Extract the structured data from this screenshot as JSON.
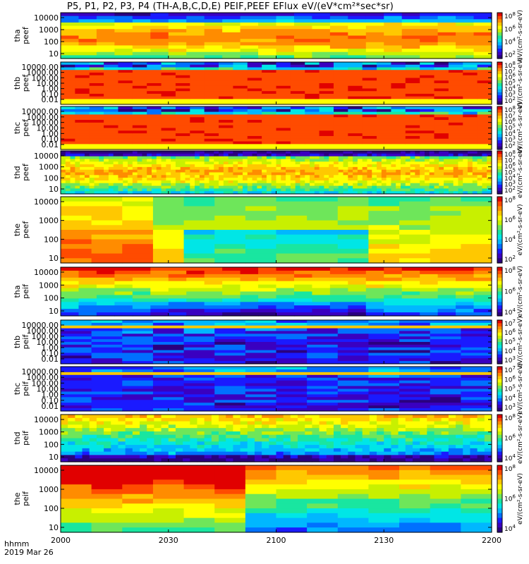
{
  "title": "P5, P1, P2, P3, P4 (TH-A,B,C,D,E) PEIF,PEEF EFlux eV/(eV*cm²*sec*sr)",
  "footer": {
    "line1": "hhmm",
    "line2": "2019 Mar 26"
  },
  "colorbar_label": "eV/(cm²-s-sr-eV)",
  "palette": [
    "#2a007f",
    "#3a00c0",
    "#1a1aff",
    "#0070ff",
    "#00b7ff",
    "#00e6e6",
    "#19e6a0",
    "#6ee65a",
    "#c8f000",
    "#ffff00",
    "#ffc800",
    "#ff8c00",
    "#ff4b00",
    "#e10000"
  ],
  "chart_data": [
    {
      "type": "heatmap",
      "name": "tha_peef",
      "ylabel_line1": "tha",
      "ylabel_line2": "peef",
      "yticks": [
        "10000",
        "1000",
        "100",
        "10"
      ],
      "xticks": [
        "2000",
        "2030",
        "2100",
        "2130",
        "2200"
      ],
      "cbar_ticks": [
        "10^8",
        "10^6",
        "10^4",
        "10^2"
      ],
      "time_bins": 24,
      "energy_bins": 14,
      "log_energy_range": [
        0.7,
        4.4
      ],
      "nan_low": [],
      "pattern": "peef_a"
    },
    {
      "type": "heatmap",
      "name": "thb_peef",
      "ylabel_line1": "thb",
      "ylabel_line2": "peef",
      "yticks": [
        "10000.00",
        "1000.00",
        "100.00",
        "10.00",
        "1.00",
        "0.10",
        "0.01"
      ],
      "xticks": [
        "2000",
        "2030",
        "2100",
        "2130",
        "2200"
      ],
      "cbar_ticks": [
        "10^8",
        "10^7",
        "10^6",
        "10^5",
        "10^4",
        "10^3",
        "10^2"
      ],
      "time_bins": 30,
      "energy_bins": 16,
      "log_energy_range": [
        -2.0,
        4.1
      ],
      "pattern": "peef_b"
    },
    {
      "type": "heatmap",
      "name": "thc_peef",
      "ylabel_line1": "thc",
      "ylabel_line2": "peef",
      "yticks": [
        "10000.00",
        "1000.00",
        "100.00",
        "10.00",
        "1.00",
        "0.10",
        "0.01"
      ],
      "xticks": [
        "2000",
        "2030",
        "2100",
        "2130",
        "2200"
      ],
      "cbar_ticks": [
        "10^8",
        "10^7",
        "10^6",
        "10^5",
        "10^4",
        "10^3",
        "10^2"
      ],
      "time_bins": 30,
      "energy_bins": 16,
      "log_energy_range": [
        -2.0,
        4.1
      ],
      "pattern": "peef_c"
    },
    {
      "type": "heatmap",
      "name": "thd_peef",
      "ylabel_line1": "thd",
      "ylabel_line2": "peef",
      "yticks": [
        "10000",
        "1000",
        "100",
        "10"
      ],
      "xticks": [
        "2000",
        "2030",
        "2100",
        "2130",
        "2200"
      ],
      "cbar_ticks": [
        "10^8",
        "10^7",
        "10^6",
        "10^5",
        "10^4",
        "10^3",
        "10^2"
      ],
      "time_bins": 90,
      "energy_bins": 16,
      "log_energy_range": [
        0.7,
        4.4
      ],
      "pattern": "peef_d"
    },
    {
      "type": "heatmap",
      "name": "the_peef",
      "ylabel_line1": "the",
      "ylabel_line2": "peef",
      "yticks": [
        "10000",
        "1000",
        "100",
        "10"
      ],
      "xticks": [
        "2000",
        "2030",
        "2100",
        "2130",
        "2200"
      ],
      "cbar_ticks": [
        "10^8",
        "10^6",
        "10^4",
        "10^2"
      ],
      "time_bins": 14,
      "energy_bins": 14,
      "log_energy_range": [
        0.7,
        4.4
      ],
      "pattern": "peef_e"
    },
    {
      "type": "heatmap",
      "name": "tha_peif",
      "ylabel_line1": "tha",
      "ylabel_line2": "peif",
      "yticks": [
        "10000",
        "1000",
        "100",
        "10"
      ],
      "xticks": [
        "2000",
        "2030",
        "2100",
        "2130",
        "2200"
      ],
      "cbar_ticks": [
        "10^8",
        "10^6",
        "10^4"
      ],
      "time_bins": 24,
      "energy_bins": 14,
      "log_energy_range": [
        0.7,
        4.4
      ],
      "pattern": "peif_a"
    },
    {
      "type": "heatmap",
      "name": "thb_peif",
      "ylabel_line1": "thb",
      "ylabel_line2": "peif",
      "yticks": [
        "10000.00",
        "1000.00",
        "100.00",
        "10.00",
        "1.00",
        "0.10",
        "0.01"
      ],
      "xticks": [
        "2000",
        "2030",
        "2100",
        "2130",
        "2200"
      ],
      "cbar_ticks": [
        "10^7",
        "10^6",
        "10^5",
        "10^4",
        "10^3"
      ],
      "time_bins": 14,
      "energy_bins": 16,
      "log_energy_range": [
        -2.0,
        4.1
      ],
      "pattern": "peif_b"
    },
    {
      "type": "heatmap",
      "name": "thc_peif",
      "ylabel_line1": "thc",
      "ylabel_line2": "peif",
      "yticks": [
        "10000.00",
        "1000.00",
        "100.00",
        "10.00",
        "1.00",
        "0.10",
        "0.01"
      ],
      "xticks": [
        "2000",
        "2030",
        "2100",
        "2130",
        "2200"
      ],
      "cbar_ticks": [
        "10^7",
        "10^6",
        "10^5",
        "10^4",
        "10^3"
      ],
      "time_bins": 14,
      "energy_bins": 16,
      "log_energy_range": [
        -2.0,
        4.1
      ],
      "pattern": "peif_c"
    },
    {
      "type": "heatmap",
      "name": "thd_peif",
      "ylabel_line1": "thd",
      "ylabel_line2": "peif",
      "yticks": [
        "10000",
        "1000",
        "100",
        "10"
      ],
      "xticks": [
        "2000",
        "2030",
        "2100",
        "2130",
        "2200"
      ],
      "cbar_ticks": [
        "10^8",
        "10^6",
        "10^4"
      ],
      "time_bins": 60,
      "energy_bins": 14,
      "log_energy_range": [
        0.7,
        4.4
      ],
      "pattern": "peif_d"
    },
    {
      "type": "heatmap",
      "name": "the_peif",
      "ylabel_line1": "the",
      "ylabel_line2": "peif",
      "yticks": [
        "10000",
        "1000",
        "100",
        "10"
      ],
      "xticks": [
        "2000",
        "2030",
        "2100",
        "2130",
        "2200"
      ],
      "cbar_ticks": [
        "10^8",
        "10^6",
        "10^4"
      ],
      "time_bins": 14,
      "energy_bins": 14,
      "log_energy_range": [
        0.7,
        4.4
      ],
      "pattern": "peif_e"
    }
  ]
}
